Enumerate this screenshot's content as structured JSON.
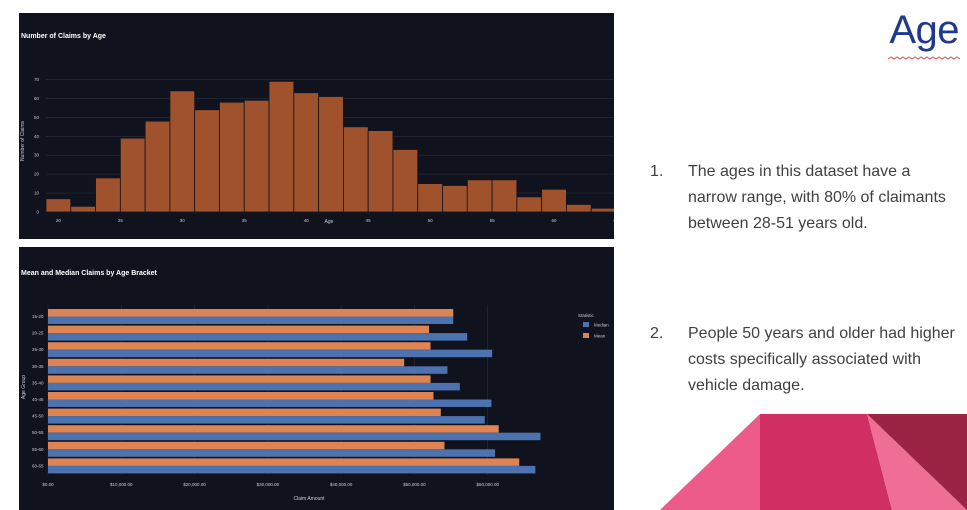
{
  "slide": {
    "title": "Age",
    "points": [
      {
        "number": "1.",
        "text": "The ages in this dataset have a narrow range, with 80% of claimants between 28-51 years old."
      },
      {
        "number": "2.",
        "text": "People 50 years and older had higher costs specifically associated with vehicle damage."
      }
    ]
  },
  "colors": {
    "chart_background": "#10131e",
    "histogram_bar": "#a0522d",
    "median": "#4c72b0",
    "mean": "#dd8452",
    "title": "#1f3a8a",
    "decor_pink": "#ec5b8a",
    "decor_magenta": "#cf2f63",
    "decor_maroon": "#9b2344"
  },
  "chart_data": [
    {
      "type": "bar",
      "title": "Number of Claims by Age",
      "xlabel": "Age",
      "ylabel": "Number of Claims",
      "bin_start": 19,
      "bin_width": 2,
      "values": [
        7,
        3,
        18,
        39,
        48,
        64,
        54,
        58,
        59,
        69,
        63,
        61,
        45,
        43,
        33,
        15,
        14,
        17,
        17,
        8,
        12,
        4,
        2
      ],
      "xlim": [
        19,
        65
      ],
      "ylim": [
        0,
        75
      ],
      "xticks": [
        20,
        25,
        30,
        35,
        40,
        45,
        50,
        55,
        60,
        65
      ],
      "yticks": [
        0,
        10,
        20,
        30,
        40,
        50,
        60,
        70
      ],
      "grid": true
    },
    {
      "type": "bar",
      "orientation": "horizontal",
      "title": "Mean and Median Claims by Age Bracket",
      "xlabel": "Claim Amount",
      "ylabel": "Age Group",
      "categories": [
        "15-20",
        "20-25",
        "25-30",
        "30-35",
        "35-40",
        "40-45",
        "45-50",
        "50-55",
        "55-60",
        "60-65"
      ],
      "legend_title": "Statistic",
      "legend_position": "right",
      "series": [
        {
          "name": "Median",
          "values": [
            55300,
            57200,
            60600,
            54500,
            56200,
            60500,
            59600,
            67200,
            61000,
            66500
          ]
        },
        {
          "name": "Mean",
          "values": [
            55300,
            52000,
            52200,
            48600,
            52200,
            52600,
            53600,
            61500,
            54100,
            64300
          ]
        }
      ],
      "xlim": [
        0,
        70000
      ],
      "xticks": [
        "$0.00",
        "$10,000.00",
        "$20,000.00",
        "$30,000.00",
        "$40,000.00",
        "$50,000.00",
        "$60,000.00"
      ],
      "grid": true
    }
  ]
}
